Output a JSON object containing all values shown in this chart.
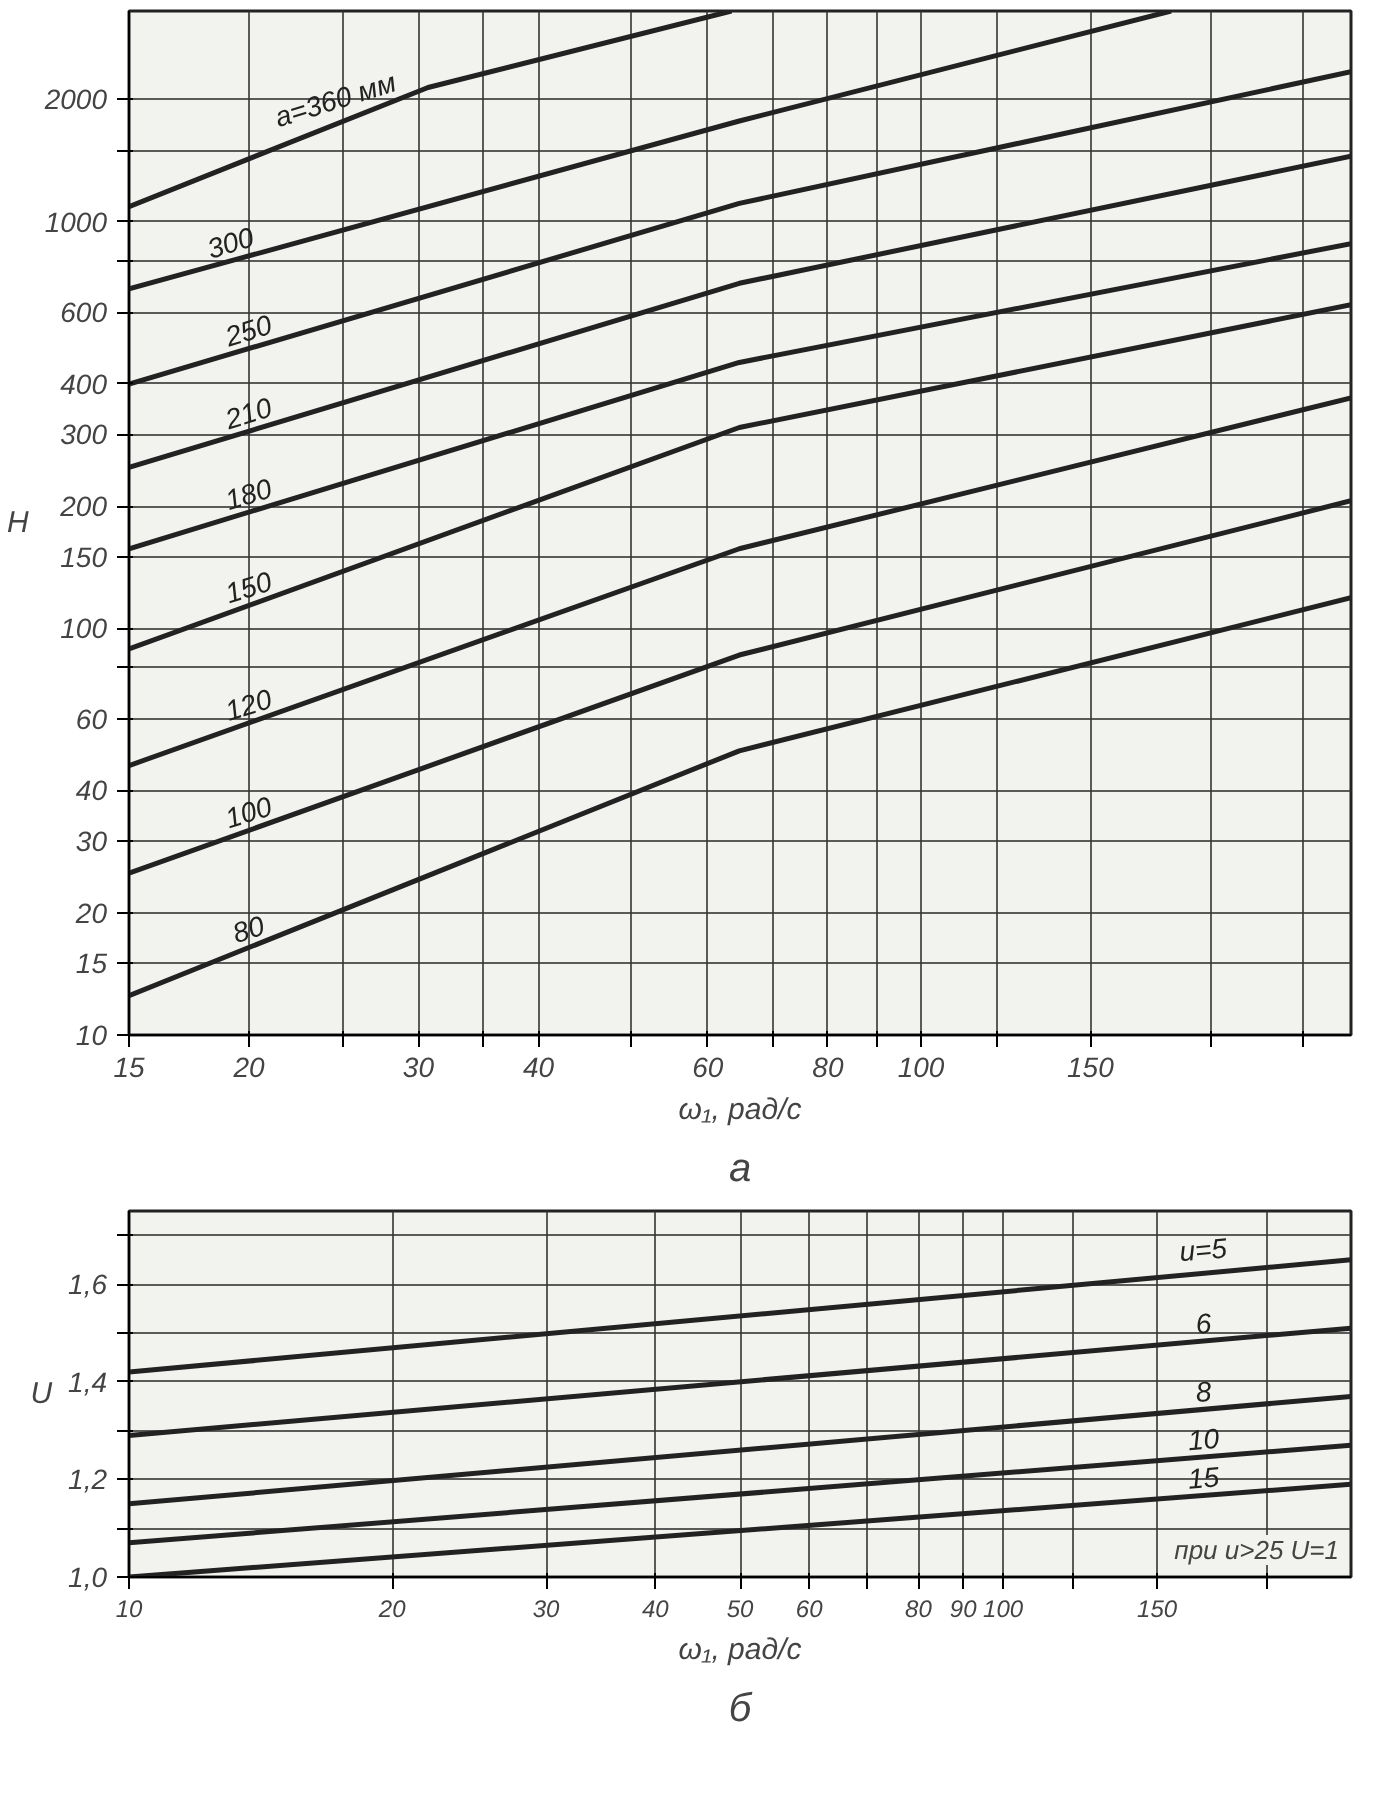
{
  "chart_data": [
    {
      "type": "line",
      "title": "а",
      "xlabel": "ω₁, рад/с",
      "ylabel": "H",
      "log": "xy",
      "grid": true,
      "marker": "none",
      "line_style": "solid",
      "xlim": [
        15,
        280
      ],
      "ylim": [
        10,
        3300
      ],
      "xticks": [
        15,
        20,
        {
          "value": 25,
          "label": null
        },
        30,
        {
          "value": 35,
          "label": null
        },
        40,
        {
          "value": 50,
          "label": null
        },
        60,
        {
          "value": 70,
          "label": null
        },
        80,
        {
          "value": 90,
          "label": null
        },
        100,
        {
          "value": 120,
          "label": null
        },
        150,
        {
          "value": 200,
          "label": null
        },
        {
          "value": 250,
          "label": null
        }
      ],
      "yticks": [
        10,
        15,
        20,
        30,
        40,
        60,
        {
          "value": 80,
          "label": null
        },
        100,
        150,
        200,
        300,
        400,
        600,
        {
          "value": 800,
          "label": null
        },
        1000,
        {
          "value": 1500,
          "label": null
        },
        2000
      ],
      "series": [
        {
          "name": "a=360 мм",
          "color": "#222222",
          "x": [
            15,
            30.7,
            63.5
          ],
          "values": [
            1090,
            2140,
            3300
          ]
        },
        {
          "name": "300",
          "color": "#222222",
          "x": [
            15,
            64.7,
            182
          ],
          "values": [
            684,
            1770,
            3300
          ]
        },
        {
          "name": "250",
          "color": "#222222",
          "x": [
            15,
            64.7,
            280
          ],
          "values": [
            399,
            1110,
            2340
          ]
        },
        {
          "name": "210",
          "color": "#222222",
          "x": [
            15,
            64.7,
            280
          ],
          "values": [
            249,
            706,
            1450
          ]
        },
        {
          "name": "180",
          "color": "#222222",
          "x": [
            15,
            64.7,
            280
          ],
          "values": [
            157,
            451,
            884
          ]
        },
        {
          "name": "150",
          "color": "#222222",
          "x": [
            15,
            64.7,
            280
          ],
          "values": [
            89,
            312,
            625
          ]
        },
        {
          "name": "120",
          "color": "#222222",
          "x": [
            15,
            64.7,
            280
          ],
          "values": [
            46,
            157,
            369
          ]
        },
        {
          "name": "100",
          "color": "#222222",
          "x": [
            15,
            64.7,
            280
          ],
          "values": [
            25,
            86,
            206
          ]
        },
        {
          "name": "80",
          "color": "#222222",
          "x": [
            15,
            64.7,
            280
          ],
          "values": [
            12.5,
            50,
            119
          ]
        }
      ]
    },
    {
      "type": "line",
      "title": "б",
      "xlabel": "ω₁, рад/с",
      "ylabel": "U",
      "log": "x",
      "grid": true,
      "marker": "none",
      "line_style": "solid",
      "xlim": [
        10,
        250
      ],
      "ylim": [
        1.0,
        1.75
      ],
      "xticks": [
        10,
        20,
        30,
        40,
        50,
        60,
        {
          "value": 70,
          "label": null
        },
        80,
        90,
        100,
        {
          "value": 120,
          "label": null
        },
        150,
        {
          "value": 200,
          "label": null
        }
      ],
      "yticks": [
        {
          "value": 1.0,
          "label": "1,0"
        },
        {
          "value": 1.1,
          "label": null
        },
        {
          "value": 1.2,
          "label": "1,2"
        },
        {
          "value": 1.3,
          "label": null
        },
        {
          "value": 1.4,
          "label": "1,4"
        },
        {
          "value": 1.5,
          "label": null
        },
        {
          "value": 1.6,
          "label": "1,6"
        },
        {
          "value": 1.7,
          "label": null
        }
      ],
      "annotations": [
        "при u>25 U=1"
      ],
      "series": [
        {
          "name": "u=5",
          "color": "#222222",
          "x": [
            10,
            250
          ],
          "values": [
            1.42,
            1.65
          ]
        },
        {
          "name": "6",
          "color": "#222222",
          "x": [
            10,
            250
          ],
          "values": [
            1.29,
            1.51
          ]
        },
        {
          "name": "8",
          "color": "#222222",
          "x": [
            10,
            250
          ],
          "values": [
            1.15,
            1.37
          ]
        },
        {
          "name": "10",
          "color": "#222222",
          "x": [
            10,
            250
          ],
          "values": [
            1.07,
            1.27
          ]
        },
        {
          "name": "15",
          "color": "#222222",
          "x": [
            10,
            250
          ],
          "values": [
            1.0,
            1.19
          ]
        }
      ]
    }
  ]
}
